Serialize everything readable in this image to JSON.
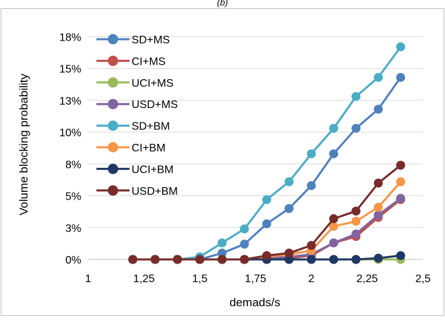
{
  "panel_label": "(b)",
  "chart_data": {
    "type": "line",
    "xlabel": "demads/s",
    "ylabel": "Volume blocking probability",
    "xlim": [
      1,
      2.5
    ],
    "ylim": [
      0,
      0.18
    ],
    "x_ticks": [
      1,
      1.25,
      1.5,
      1.75,
      2,
      2.25,
      2.5
    ],
    "x_tick_labels": [
      "1",
      "1,25",
      "1,5",
      "1,75",
      "2",
      "2,25",
      "2,5"
    ],
    "y_ticks": [
      0,
      0.025,
      0.05,
      0.075,
      0.1,
      0.125,
      0.15,
      0.175
    ],
    "y_tick_labels": [
      "0%",
      "3%",
      "5%",
      "8%",
      "10%",
      "13%",
      "15%",
      "18%"
    ],
    "grid": "horizontal",
    "legend_position": "top-left",
    "x": [
      1.2,
      1.3,
      1.4,
      1.5,
      1.6,
      1.7,
      1.8,
      1.9,
      2.0,
      2.1,
      2.2,
      2.3,
      2.4
    ],
    "series": [
      {
        "name": "SD+MS",
        "color": "#4f81bd",
        "values": [
          0,
          0,
          0,
          0,
          0.005,
          0.012,
          0.028,
          0.04,
          0.058,
          0.083,
          0.103,
          0.118,
          0.143
        ]
      },
      {
        "name": "CI+MS",
        "color": "#c0504d",
        "values": [
          0,
          0,
          0,
          0,
          0,
          0,
          0,
          0.001,
          0.003,
          0.013,
          0.018,
          0.033,
          0.047
        ]
      },
      {
        "name": "UCI+MS",
        "color": "#9bbb59",
        "values": [
          0,
          0,
          0,
          0,
          0,
          0,
          0,
          0,
          0,
          0,
          0,
          0,
          0
        ]
      },
      {
        "name": "USD+MS",
        "color": "#8064a2",
        "values": [
          0,
          0,
          0,
          0,
          0,
          0,
          0.001,
          0.002,
          0.004,
          0.013,
          0.02,
          0.035,
          0.048
        ]
      },
      {
        "name": "SD+BM",
        "color": "#4bacc6",
        "values": [
          0,
          0,
          0,
          0.002,
          0.013,
          0.024,
          0.047,
          0.061,
          0.083,
          0.103,
          0.128,
          0.143,
          0.167
        ]
      },
      {
        "name": "CI+BM",
        "color": "#f79646",
        "values": [
          0,
          0,
          0,
          0,
          0,
          0,
          0.002,
          0.004,
          0.007,
          0.026,
          0.03,
          0.041,
          0.061
        ]
      },
      {
        "name": "UCI+BM",
        "color": "#1f3864",
        "values": [
          0,
          0,
          0,
          0,
          0,
          0,
          0,
          0,
          0,
          0,
          0,
          0.001,
          0.003
        ]
      },
      {
        "name": "USD+BM",
        "color": "#772c2a",
        "values": [
          0,
          0,
          0,
          0,
          0,
          0,
          0.003,
          0.005,
          0.011,
          0.032,
          0.038,
          0.06,
          0.074
        ]
      }
    ]
  }
}
